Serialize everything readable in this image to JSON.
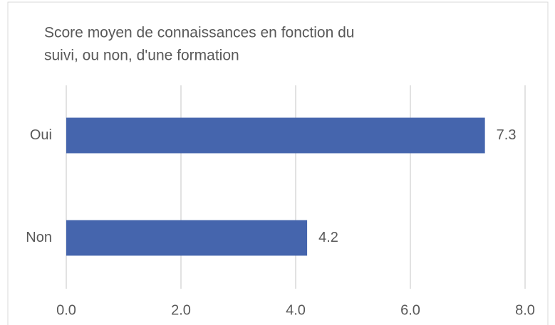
{
  "chart_data": {
    "type": "barh",
    "title": [
      "Score moyen de connaissances en fonction du",
      "suivi, ou non, d'une formation"
    ],
    "categories": [
      "Oui",
      "Non"
    ],
    "values": [
      7.3,
      4.2
    ],
    "color": "#4565ad",
    "xlim": [
      0,
      8
    ],
    "xticks": [
      {
        "value": 0,
        "label": "0.0"
      },
      {
        "value": 2,
        "label": "2.0"
      },
      {
        "value": 4,
        "label": "4.0"
      },
      {
        "value": 6,
        "label": "6.0"
      },
      {
        "value": 8,
        "label": "8.0"
      }
    ],
    "grid": true
  }
}
